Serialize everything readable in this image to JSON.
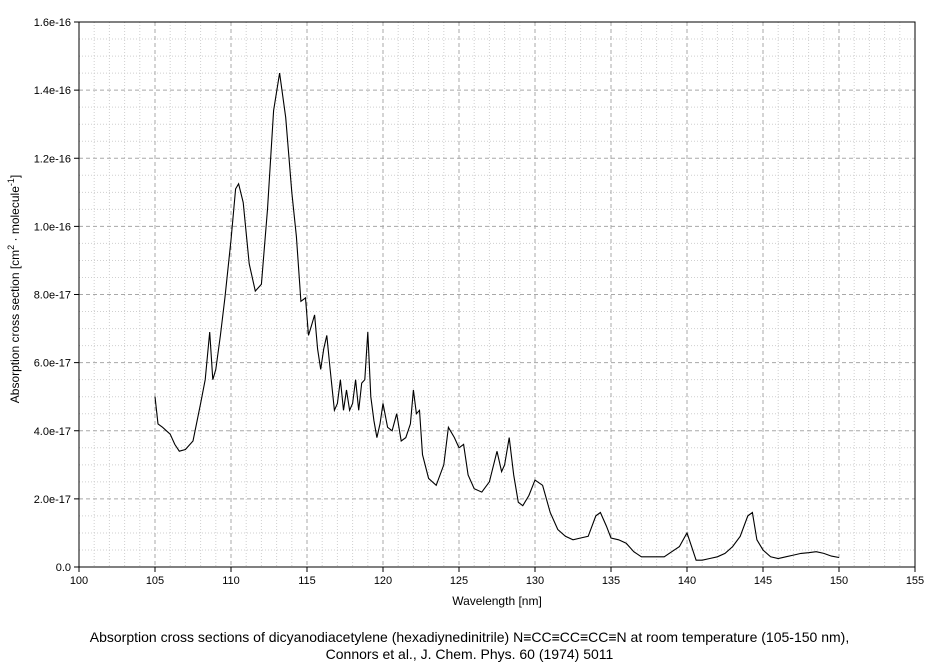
{
  "caption": {
    "line1": "Absorption cross sections of dicyanodiacetylene (hexadiynedinitrile) N≡CC≡CC≡CC≡N at room temperature (105-150 nm),",
    "line2": "Connors et al., J. Chem. Phys. 60  (1974) 5011"
  },
  "chart_data": {
    "type": "line",
    "xlabel": "Wavelength [nm]",
    "ylabel": {
      "main": "Absorption cross section [cm",
      "sup1": "2",
      "mid": " · molecule",
      "sup2": "-1",
      "end": "]"
    },
    "xlim": [
      100,
      155
    ],
    "ylim": [
      0,
      1.6e-16
    ],
    "x_ticks": [
      100,
      105,
      110,
      115,
      120,
      125,
      130,
      135,
      140,
      145,
      150,
      155
    ],
    "y_ticks": [
      0,
      2e-17,
      4e-17,
      6e-17,
      8e-17,
      1e-16,
      1.2e-16,
      1.4e-16,
      1.6e-16
    ],
    "y_tick_labels": [
      "0.0",
      "2.0e-17",
      "4.0e-17",
      "6.0e-17",
      "8.0e-17",
      "1.0e-16",
      "1.2e-16",
      "1.4e-16",
      "1.6e-16"
    ],
    "grid": "dashed major + dotted minor",
    "line_color": "#000000",
    "series": [
      {
        "x": [
          105.0,
          105.2,
          105.5,
          106.0,
          106.3,
          106.6,
          107.0,
          107.5,
          108.0,
          108.3,
          108.6,
          108.8,
          109.0,
          109.3,
          109.6,
          110.0,
          110.3,
          110.5,
          110.8,
          111.2,
          111.6,
          112.0,
          112.4,
          112.8,
          113.2,
          113.6,
          114.0,
          114.3,
          114.6,
          114.9,
          115.1,
          115.3,
          115.5,
          115.7,
          115.9,
          116.1,
          116.3,
          116.5,
          116.8,
          117.0,
          117.2,
          117.4,
          117.6,
          117.8,
          118.0,
          118.2,
          118.4,
          118.6,
          118.8,
          119.0,
          119.2,
          119.4,
          119.6,
          119.8,
          120.0,
          120.3,
          120.6,
          120.9,
          121.2,
          121.5,
          121.8,
          122.0,
          122.2,
          122.4,
          122.6,
          123.0,
          123.5,
          124.0,
          124.3,
          124.7,
          125.0,
          125.3,
          125.6,
          126.0,
          126.5,
          127.0,
          127.5,
          127.8,
          128.0,
          128.3,
          128.6,
          128.9,
          129.2,
          129.6,
          130.0,
          130.5,
          131.0,
          131.5,
          132.0,
          132.5,
          133.0,
          133.5,
          134.0,
          134.3,
          134.7,
          135.0,
          135.5,
          136.0,
          136.5,
          137.0,
          137.5,
          138.0,
          138.5,
          139.0,
          139.5,
          140.0,
          140.3,
          140.6,
          141.0,
          141.5,
          142.0,
          142.5,
          143.0,
          143.5,
          144.0,
          144.3,
          144.6,
          145.0,
          145.5,
          146.0,
          146.5,
          147.0,
          147.5,
          148.0,
          148.5,
          149.0,
          149.5,
          150.0
        ],
        "y": [
          5e-17,
          4.2e-17,
          4.1e-17,
          3.9e-17,
          3.6e-17,
          3.4e-17,
          3.45e-17,
          3.7e-17,
          4.8e-17,
          5.5e-17,
          6.9e-17,
          5.5e-17,
          5.8e-17,
          6.8e-17,
          7.9e-17,
          9.6e-17,
          1.11e-16,
          1.125e-16,
          1.07e-16,
          8.9e-17,
          8.1e-17,
          8.3e-17,
          1.05e-16,
          1.34e-16,
          1.45e-16,
          1.32e-16,
          1.1e-16,
          9.7e-17,
          7.8e-17,
          7.9e-17,
          6.8e-17,
          7.1e-17,
          7.4e-17,
          6.4e-17,
          5.8e-17,
          6.4e-17,
          6.8e-17,
          5.9e-17,
          4.6e-17,
          4.8e-17,
          5.5e-17,
          4.6e-17,
          5.2e-17,
          4.6e-17,
          4.8e-17,
          5.5e-17,
          4.6e-17,
          5.4e-17,
          5.5e-17,
          6.9e-17,
          5e-17,
          4.3e-17,
          3.8e-17,
          4.2e-17,
          4.8e-17,
          4.1e-17,
          4e-17,
          4.5e-17,
          3.7e-17,
          3.8e-17,
          4.2e-17,
          5.2e-17,
          4.5e-17,
          4.6e-17,
          3.3e-17,
          2.6e-17,
          2.4e-17,
          3e-17,
          4.1e-17,
          3.8e-17,
          3.5e-17,
          3.6e-17,
          2.7e-17,
          2.3e-17,
          2.2e-17,
          2.5e-17,
          3.4e-17,
          2.8e-17,
          3e-17,
          3.8e-17,
          2.7e-17,
          1.9e-17,
          1.8e-17,
          2.1e-17,
          2.55e-17,
          2.4e-17,
          1.6e-17,
          1.1e-17,
          9e-18,
          8e-18,
          8.5e-18,
          9e-18,
          1.5e-17,
          1.6e-17,
          1.2e-17,
          8.5e-18,
          8e-18,
          7e-18,
          4.5e-18,
          3e-18,
          3e-18,
          3e-18,
          3e-18,
          4.5e-18,
          6e-18,
          1e-17,
          6e-18,
          2e-18,
          2e-18,
          2.5e-18,
          3e-18,
          4e-18,
          6e-18,
          9e-18,
          1.5e-17,
          1.6e-17,
          8e-18,
          5e-18,
          3e-18,
          2.5e-18,
          3e-18,
          3.5e-18,
          4e-18,
          4.2e-18,
          4.5e-18,
          4e-18,
          3.2e-18,
          2.8e-18
        ]
      }
    ]
  }
}
